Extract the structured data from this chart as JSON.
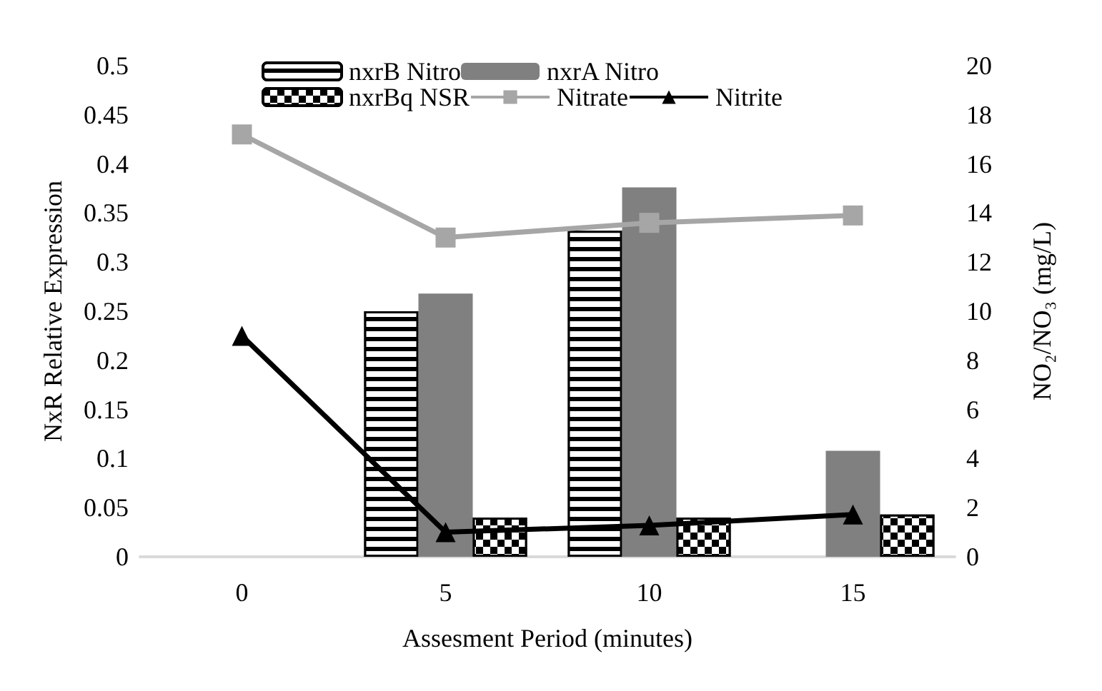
{
  "chart_data": {
    "type": "bar",
    "xlabel": "Assesment Period (minutes)",
    "ylabel": "NxR Relative Expression",
    "y2label": "NO₂/NO₃ (mg/L)",
    "categories": [
      "0",
      "5",
      "10",
      "15"
    ],
    "series": [
      {
        "name": "nxrB Nitro",
        "color": "#000000",
        "values": [
          null,
          0.25,
          0.332,
          null
        ]
      },
      {
        "name": "nxrA Nitro",
        "color": "#808080",
        "values": [
          null,
          0.268,
          0.376,
          0.108
        ]
      },
      {
        "name": "nxrBq NSR",
        "color": "#000000",
        "values": [
          null,
          0.04,
          0.04,
          0.043
        ]
      },
      {
        "name": "Nitrate",
        "type": "line",
        "axis": "y2",
        "marker": "square",
        "color": "#a6a6a6",
        "values": [
          17.2,
          13.0,
          13.6,
          13.9
        ]
      },
      {
        "name": "Nitrite",
        "type": "line",
        "axis": "y2",
        "marker": "triangle",
        "color": "#000000",
        "values": [
          9.0,
          1.0,
          1.28,
          1.72
        ]
      }
    ],
    "ylim": [
      0,
      0.5
    ],
    "yticks": [
      0,
      0.05,
      0.1,
      0.15,
      0.2,
      0.25,
      0.3,
      0.35,
      0.4,
      0.45,
      0.5
    ],
    "y2lim": [
      0,
      20
    ],
    "y2ticks": [
      0,
      2,
      4,
      6,
      8,
      10,
      12,
      14,
      16,
      18,
      20
    ],
    "legend": "top",
    "grid": false
  }
}
